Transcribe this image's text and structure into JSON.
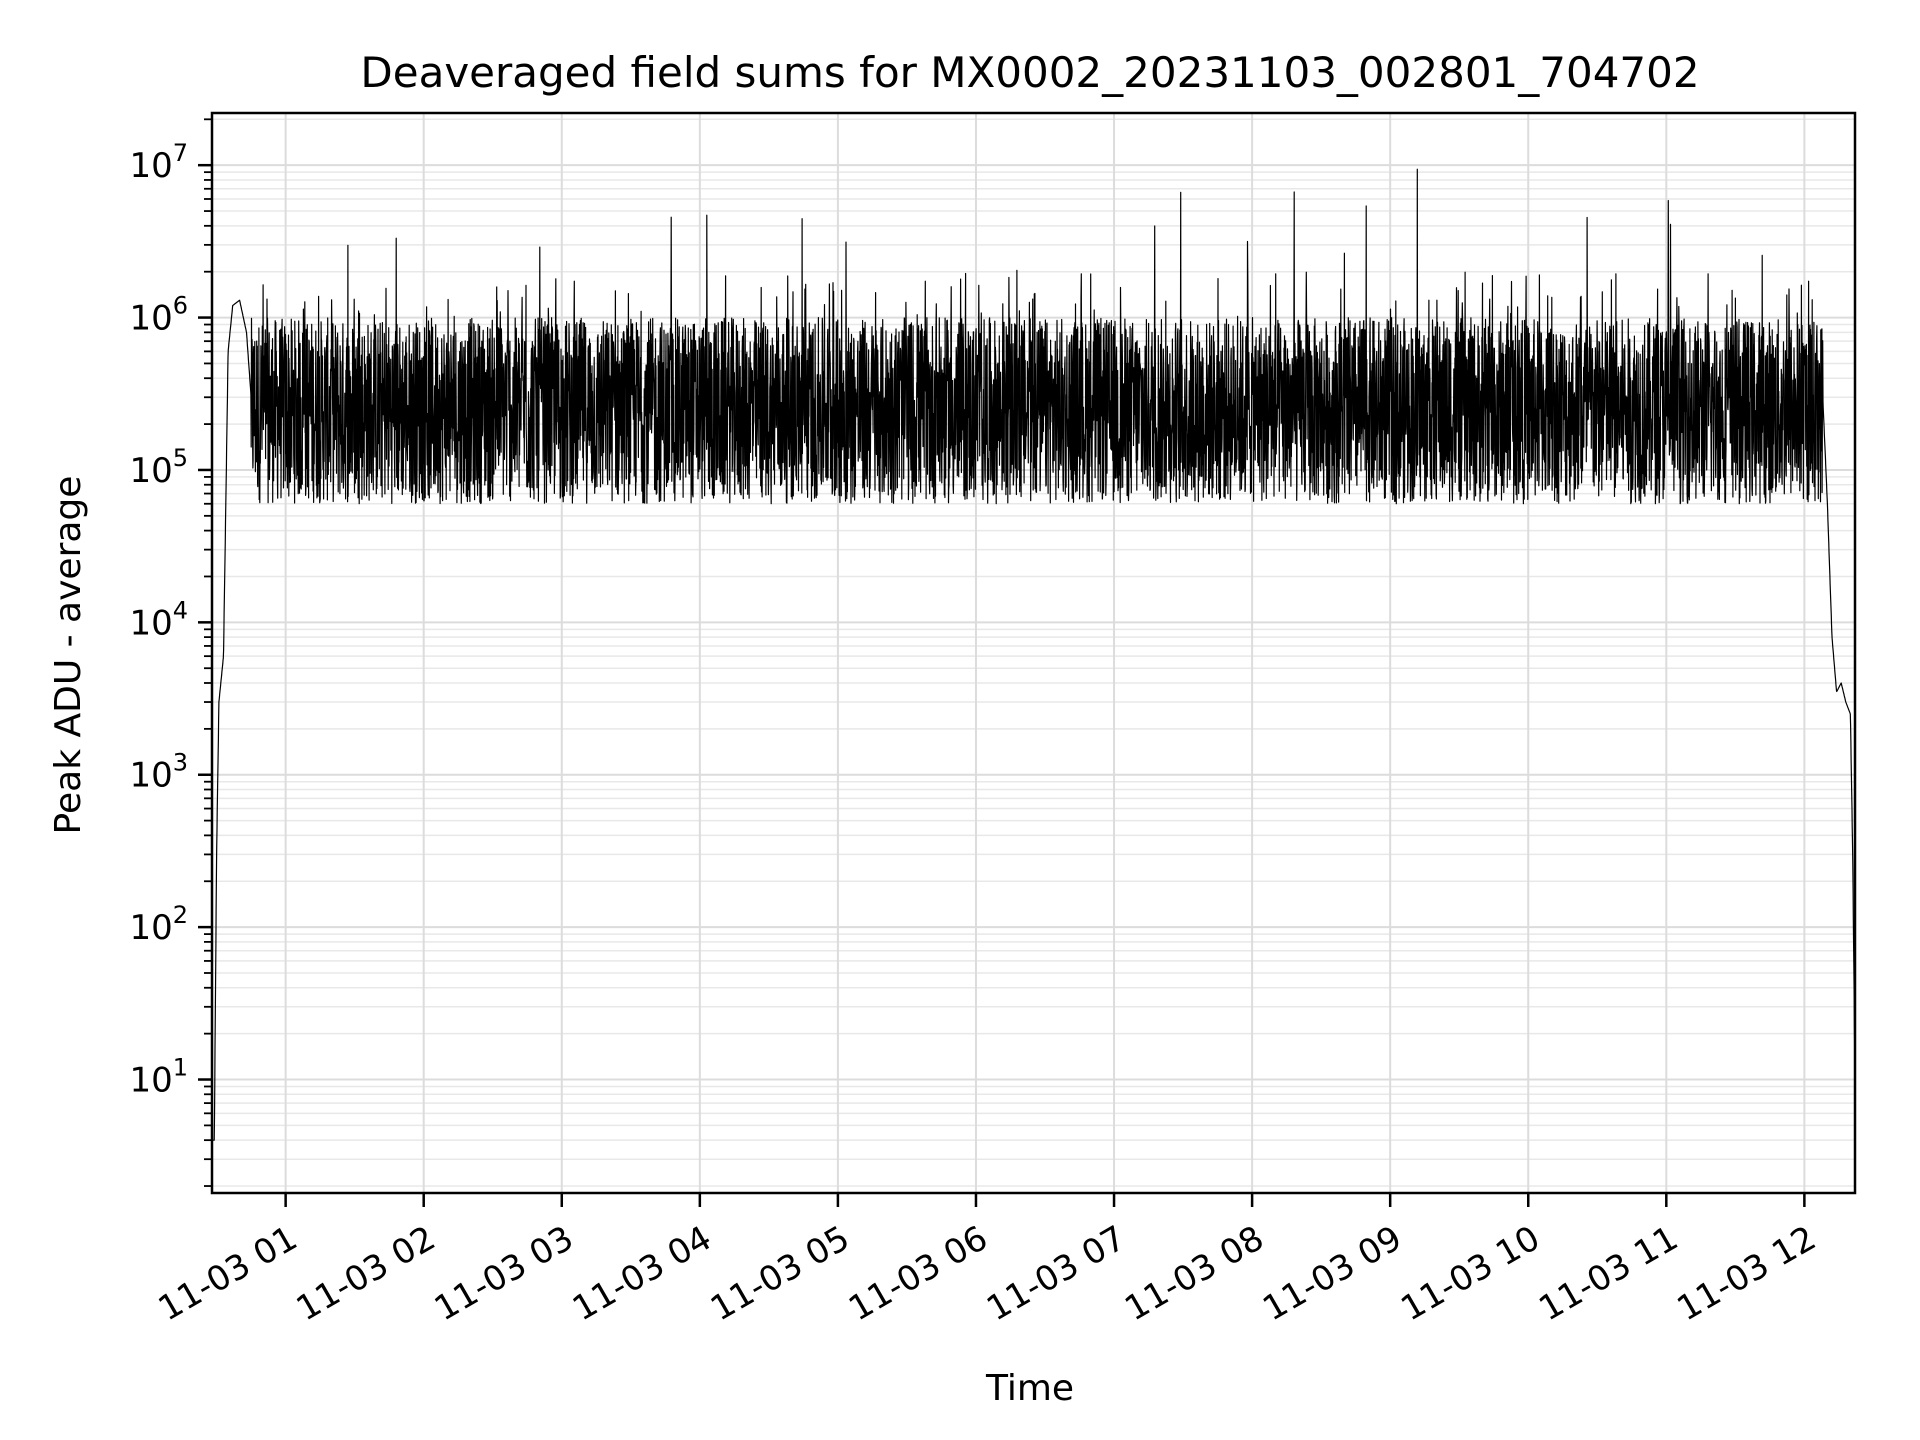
{
  "chart_data": {
    "type": "line",
    "title": "Deaveraged field sums for MX0002_20231103_002801_704702",
    "xlabel": "Time",
    "ylabel": "Peak ADU - average",
    "yscale": "log",
    "ylim": [
      1.8,
      22000000
    ],
    "xlim": [
      "2023-11-03 00:28",
      "2023-11-03 12:22"
    ],
    "grid": true,
    "grid_minor_y": true,
    "line_color": "#000000",
    "x_tick_labels": [
      "11-03 01",
      "11-03 02",
      "11-03 03",
      "11-03 04",
      "11-03 05",
      "11-03 06",
      "11-03 07",
      "11-03 08",
      "11-03 09",
      "11-03 10",
      "11-03 11",
      "11-03 12"
    ],
    "y_ticks": [
      {
        "value": 10,
        "base": "10",
        "exp": "1"
      },
      {
        "value": 100,
        "base": "10",
        "exp": "2"
      },
      {
        "value": 1000,
        "base": "10",
        "exp": "3"
      },
      {
        "value": 10000,
        "base": "10",
        "exp": "4"
      },
      {
        "value": 100000,
        "base": "10",
        "exp": "5"
      },
      {
        "value": 1000000,
        "base": "10",
        "exp": "6"
      },
      {
        "value": 10000000,
        "base": "10",
        "exp": "7"
      }
    ],
    "series": [
      {
        "x": [
          "2023-11-03 00:28",
          "2023-11-03 00:29",
          "2023-11-03 00:30",
          "2023-11-03 00:31",
          "2023-11-03 00:33",
          "2023-11-03 00:35",
          "2023-11-03 00:37",
          "2023-11-03 00:40",
          "2023-11-03 00:43",
          "2023-11-03 00:45",
          "2023-11-03 00:48",
          "2023-11-03 00:52",
          "2023-11-03 00:55",
          "2023-11-03 01:00",
          "2023-11-03 01:10",
          "2023-11-03 01:25",
          "2023-11-03 01:40",
          "2023-11-03 02:00",
          "2023-11-03 02:30",
          "2023-11-03 03:00",
          "2023-11-03 03:30",
          "2023-11-03 04:00",
          "2023-11-03 04:30",
          "2023-11-03 05:00",
          "2023-11-03 05:30",
          "2023-11-03 06:00",
          "2023-11-03 06:30",
          "2023-11-03 07:00",
          "2023-11-03 07:30",
          "2023-11-03 08:00",
          "2023-11-03 08:30",
          "2023-11-03 08:50",
          "2023-11-03 09:00",
          "2023-11-03 09:10",
          "2023-11-03 09:30",
          "2023-11-03 10:00",
          "2023-11-03 10:30",
          "2023-11-03 11:00",
          "2023-11-03 11:30",
          "2023-11-03 12:00",
          "2023-11-03 12:05",
          "2023-11-03 12:08",
          "2023-11-03 12:10",
          "2023-11-03 12:12",
          "2023-11-03 12:14",
          "2023-11-03 12:16",
          "2023-11-03 12:18",
          "2023-11-03 12:20",
          "2023-11-03 12:21",
          "2023-11-03 12:22"
        ],
        "y": [
          4,
          4,
          300,
          3000,
          6000,
          600000,
          1200000,
          1300000,
          800000,
          300000,
          250000,
          200000,
          250000,
          300000,
          200000,
          350000,
          220000,
          250000,
          300000,
          320000,
          350000,
          320000,
          380000,
          380000,
          400000,
          380000,
          420000,
          400000,
          380000,
          380000,
          400000,
          500000,
          1100000,
          500000,
          450000,
          420000,
          430000,
          400000,
          420000,
          400000,
          380000,
          300000,
          60000,
          8000,
          3500,
          4000,
          3000,
          2500,
          300,
          10
        ],
        "noise": {
          "low": 60000,
          "high": 1000000,
          "spikes_to": 10000000
        }
      }
    ]
  }
}
